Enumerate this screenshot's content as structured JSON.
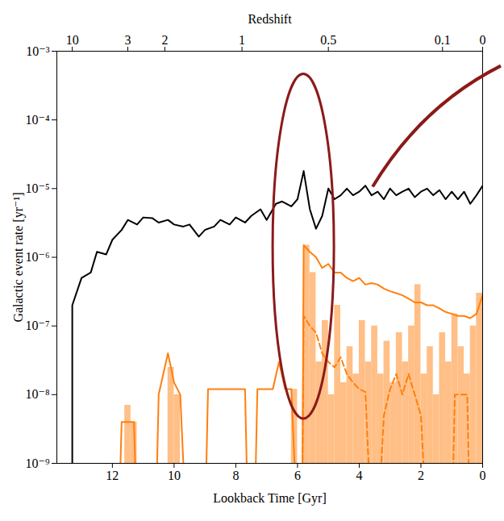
{
  "chart_data": {
    "type": "line",
    "xlabel": "Lookback Time [Gyr]",
    "x2label": "Redshift",
    "ylabel": "Galactic event rate [yr⁻¹]",
    "xlim": [
      13.8,
      0
    ],
    "xticks": [
      12,
      10,
      8,
      6,
      4,
      2,
      0
    ],
    "x2ticks": [
      {
        "value": 13.3,
        "label": "10"
      },
      {
        "value": 11.5,
        "label": "3"
      },
      {
        "value": 10.3,
        "label": "2"
      },
      {
        "value": 7.8,
        "label": "1"
      },
      {
        "value": 5.0,
        "label": "0.5"
      },
      {
        "value": 1.3,
        "label": "0.1"
      },
      {
        "value": 0,
        "label": "0"
      }
    ],
    "ylim": [
      1e-09,
      0.001
    ],
    "yticks": [
      {
        "value": 1e-09,
        "label": "10⁻⁹"
      },
      {
        "value": 1e-08,
        "label": "10⁻⁸"
      },
      {
        "value": 1e-07,
        "label": "10⁻⁷"
      },
      {
        "value": 1e-06,
        "label": "10⁻⁶"
      },
      {
        "value": 1e-05,
        "label": "10⁻⁵"
      },
      {
        "value": 0.0001,
        "label": "10⁻⁴"
      },
      {
        "value": 0.001,
        "label": "10⁻³"
      }
    ],
    "log": "y",
    "grid": false,
    "series": [
      {
        "type": "bar",
        "color": "#ffbf86",
        "bins": [
          0,
          0.2,
          0.4,
          0.6,
          0.8,
          1.0,
          1.2,
          1.4,
          1.6,
          1.8,
          2.0,
          2.2,
          2.4,
          2.6,
          2.8,
          3.0,
          3.2,
          3.4,
          3.6,
          3.8,
          4.0,
          4.2,
          4.4,
          4.6,
          4.8,
          5.0,
          5.2,
          5.4,
          5.6,
          5.8,
          6.0,
          6.2,
          6.4,
          6.6,
          6.8,
          7.0,
          7.2,
          7.4,
          7.6,
          7.8,
          8.0,
          8.2,
          8.4,
          8.6,
          8.8,
          9.0,
          9.2,
          9.4,
          9.6,
          9.8,
          10.0,
          10.2,
          10.4,
          10.6,
          10.8,
          11.0,
          11.2,
          11.4,
          11.6,
          11.8,
          12.0
        ],
        "values": [
          3e-07,
          1e-07,
          2e-08,
          5e-08,
          1.5e-07,
          3e-08,
          8e-08,
          1e-08,
          5e-08,
          2e-08,
          4e-07,
          1e-07,
          3e-08,
          8e-08,
          1.5e-08,
          6e-08,
          2e-08,
          1e-07,
          3e-08,
          1.2e-07,
          2e-08,
          5e-08,
          1.5e-08,
          2e-07,
          1e-08,
          1.2e-07,
          3e-08,
          6e-07,
          1.5e-06,
          null,
          1.2e-08,
          null,
          null,
          null,
          null,
          null,
          null,
          null,
          null,
          null,
          null,
          null,
          null,
          null,
          null,
          null,
          null,
          null,
          null,
          1e-08,
          2.5e-08,
          null,
          null,
          null,
          null,
          null,
          4e-09,
          7e-09,
          null,
          null
        ]
      },
      {
        "type": "line",
        "color": "#ff7f0e",
        "line_style": "solid",
        "x": [
          11.8,
          11.7,
          11.3,
          11.2,
          10.6,
          10.5,
          10.2,
          10.0,
          9.8,
          9.6,
          9.0,
          8.9,
          7.7,
          7.6,
          7.4,
          7.3,
          6.8,
          6.6,
          6.4,
          6.2,
          6.0,
          5.85,
          5.8,
          5.6,
          5.4,
          5.2,
          5.0,
          4.8,
          4.6,
          4.4,
          4.2,
          4.0,
          3.8,
          3.6,
          3.4,
          3.2,
          3.0,
          2.8,
          2.6,
          2.4,
          2.2,
          2.0,
          1.8,
          1.6,
          1.4,
          1.2,
          1.0,
          0.8,
          0.6,
          0.4,
          0.2,
          0.0
        ],
        "values": [
          1e-10,
          4e-09,
          4e-09,
          1e-10,
          1e-10,
          1e-08,
          4e-08,
          1.5e-08,
          1e-08,
          1e-10,
          1e-10,
          1.2e-08,
          1.2e-08,
          1e-10,
          1e-10,
          1.2e-08,
          1.2e-08,
          3e-08,
          1.2e-08,
          1.2e-08,
          1e-10,
          1e-10,
          1.5e-06,
          1.2e-06,
          1e-06,
          7e-07,
          8e-07,
          6e-07,
          6e-07,
          5e-07,
          4.5e-07,
          5e-07,
          4e-07,
          4.2e-07,
          4e-07,
          3.5e-07,
          3.2e-07,
          3e-07,
          2.8e-07,
          2.5e-07,
          2.2e-07,
          2.2e-07,
          2e-07,
          2e-07,
          1.8e-07,
          1.6e-07,
          1.5e-07,
          1.4e-07,
          1.4e-07,
          1.3e-07,
          1.5e-07,
          2.8e-07
        ]
      },
      {
        "type": "line",
        "color": "#ff7f0e",
        "line_style": "dashed",
        "x": [
          5.85,
          5.8,
          5.6,
          5.4,
          5.2,
          5.0,
          4.8,
          4.6,
          4.4,
          4.2,
          4.0,
          3.8,
          3.6,
          3.4,
          3.2,
          3.0,
          2.8,
          2.6,
          2.4,
          2.2,
          2.0,
          1.8,
          1.0,
          0.9,
          0.5,
          0.4
        ],
        "values": [
          1e-10,
          1.4e-07,
          1e-07,
          8e-08,
          4e-08,
          3e-08,
          2.5e-08,
          3.5e-08,
          2e-08,
          1.5e-08,
          1.2e-08,
          1.1e-08,
          1e-10,
          1e-10,
          5e-09,
          1.2e-08,
          2e-08,
          1e-08,
          2e-08,
          1e-08,
          5e-09,
          1e-10,
          1e-10,
          1e-08,
          1e-08,
          1e-10
        ]
      },
      {
        "type": "line",
        "color": "#000000",
        "line_style": "solid",
        "x": [
          13.3,
          13.3,
          13.0,
          12.7,
          12.5,
          12.2,
          12.0,
          11.7,
          11.5,
          11.2,
          11.0,
          10.7,
          10.5,
          10.2,
          10.0,
          9.7,
          9.5,
          9.2,
          9.0,
          8.7,
          8.5,
          8.2,
          8.0,
          7.7,
          7.5,
          7.2,
          7.0,
          6.7,
          6.5,
          6.2,
          6.0,
          5.8,
          5.6,
          5.4,
          5.2,
          5.0,
          4.8,
          4.6,
          4.4,
          4.2,
          4.0,
          3.8,
          3.6,
          3.4,
          3.2,
          3.0,
          2.8,
          2.6,
          2.4,
          2.2,
          2.0,
          1.8,
          1.6,
          1.4,
          1.2,
          1.0,
          0.8,
          0.6,
          0.4,
          0.2,
          0.0
        ],
        "values": [
          1e-10,
          2e-07,
          5e-07,
          6e-07,
          1.2e-06,
          1.1e-06,
          1.8e-06,
          2.5e-06,
          3.5e-06,
          3e-06,
          3.8e-06,
          3.7e-06,
          3.2e-06,
          3.5e-06,
          3e-06,
          2.8e-06,
          3e-06,
          2e-06,
          2.5e-06,
          2.8e-06,
          3.5e-06,
          3e-06,
          3.8e-06,
          3.2e-06,
          4e-06,
          5e-06,
          3.5e-06,
          6e-06,
          6.5e-06,
          5.5e-06,
          7e-06,
          1.8e-05,
          5e-06,
          2.6e-06,
          4e-06,
          1e-05,
          7e-06,
          8e-06,
          1e-05,
          8e-06,
          9e-06,
          1.1e-05,
          8e-06,
          9e-06,
          7e-06,
          1e-05,
          8e-06,
          9e-06,
          1e-05,
          7.5e-06,
          9e-06,
          1e-05,
          8e-06,
          9.5e-06,
          7e-06,
          9e-06,
          7e-06,
          9e-06,
          6e-06,
          8e-06,
          1.1e-05
        ]
      }
    ]
  }
}
